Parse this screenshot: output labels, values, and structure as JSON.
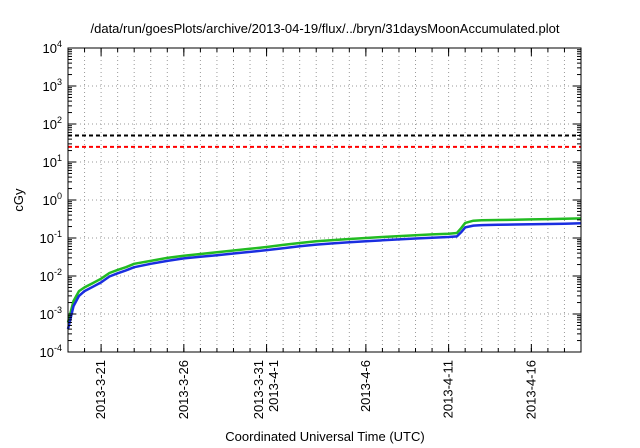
{
  "chart_data": {
    "type": "line",
    "title": "/data/run/goesPlots/archive/2013-04-19/flux/../bryn/31daysMoonAccumulated.plot",
    "xlabel": "Coordinated Universal Time (UTC)",
    "ylabel": "cGy",
    "yscale": "log",
    "ylim": [
      0.0001,
      10000
    ],
    "xlim": [
      "2013-03-19",
      "2013-04-19"
    ],
    "grid": true,
    "x_ticks": [
      {
        "date": "2013-03-21",
        "lines": [
          "2013-3-21"
        ]
      },
      {
        "date": "2013-03-26",
        "lines": [
          "2013-3-26"
        ]
      },
      {
        "date": "2013-03-31",
        "lines": [
          "2013-3-31",
          "2013-4-1"
        ]
      },
      {
        "date": "2013-04-06",
        "lines": [
          "2013-4-6"
        ]
      },
      {
        "date": "2013-04-11",
        "lines": [
          "2013-4-11"
        ]
      },
      {
        "date": "2013-04-16",
        "lines": [
          "2013-4-16"
        ]
      }
    ],
    "y_ticks": [
      {
        "exp": -4,
        "base": "10",
        "sup": "-4"
      },
      {
        "exp": -3,
        "base": "10",
        "sup": "-3"
      },
      {
        "exp": -2,
        "base": "10",
        "sup": "-2"
      },
      {
        "exp": -1,
        "base": "10",
        "sup": "-1"
      },
      {
        "exp": 0,
        "base": "10",
        "sup": "0"
      },
      {
        "exp": 1,
        "base": "10",
        "sup": "1"
      },
      {
        "exp": 2,
        "base": "10",
        "sup": "2"
      },
      {
        "exp": 3,
        "base": "10",
        "sup": "3"
      },
      {
        "exp": 4,
        "base": "10",
        "sup": "4"
      }
    ],
    "thresholds": [
      {
        "value": 50,
        "color": "#000000"
      },
      {
        "value": 25,
        "color": "#ff0000"
      }
    ],
    "series": [
      {
        "color": "#22bb22",
        "points": [
          [
            "2013-03-19",
            0.0006
          ],
          [
            "2013-03-19T08",
            0.0022
          ],
          [
            "2013-03-19T16",
            0.004
          ],
          [
            "2013-03-20",
            0.005
          ],
          [
            "2013-03-20T12",
            0.0065
          ],
          [
            "2013-03-21",
            0.0085
          ],
          [
            "2013-03-21T12",
            0.012
          ],
          [
            "2013-03-22",
            0.0145
          ],
          [
            "2013-03-22T12",
            0.017
          ],
          [
            "2013-03-23",
            0.021
          ],
          [
            "2013-03-24",
            0.025
          ],
          [
            "2013-03-25",
            0.03
          ],
          [
            "2013-03-26",
            0.034
          ],
          [
            "2013-03-27",
            0.038
          ],
          [
            "2013-03-28",
            0.042
          ],
          [
            "2013-03-29",
            0.047
          ],
          [
            "2013-03-30",
            0.052
          ],
          [
            "2013-03-31",
            0.058
          ],
          [
            "2013-04-01",
            0.066
          ],
          [
            "2013-04-02",
            0.074
          ],
          [
            "2013-04-03",
            0.082
          ],
          [
            "2013-04-04",
            0.088
          ],
          [
            "2013-04-05",
            0.094
          ],
          [
            "2013-04-06",
            0.1
          ],
          [
            "2013-04-07",
            0.106
          ],
          [
            "2013-04-08",
            0.112
          ],
          [
            "2013-04-09",
            0.118
          ],
          [
            "2013-04-10",
            0.124
          ],
          [
            "2013-04-11",
            0.13
          ],
          [
            "2013-04-11T12",
            0.135
          ],
          [
            "2013-04-11T18",
            0.18
          ],
          [
            "2013-04-12",
            0.25
          ],
          [
            "2013-04-12T12",
            0.285
          ],
          [
            "2013-04-13",
            0.292
          ],
          [
            "2013-04-14",
            0.297
          ],
          [
            "2013-04-15",
            0.302
          ],
          [
            "2013-04-16",
            0.308
          ],
          [
            "2013-04-17",
            0.314
          ],
          [
            "2013-04-18",
            0.32
          ],
          [
            "2013-04-19",
            0.328
          ]
        ]
      },
      {
        "color": "#1a2ee0",
        "points": [
          [
            "2013-03-19",
            0.0004
          ],
          [
            "2013-03-19T08",
            0.0016
          ],
          [
            "2013-03-19T16",
            0.003
          ],
          [
            "2013-03-20",
            0.004
          ],
          [
            "2013-03-20T12",
            0.0052
          ],
          [
            "2013-03-21",
            0.0068
          ],
          [
            "2013-03-21T12",
            0.0097
          ],
          [
            "2013-03-22",
            0.0118
          ],
          [
            "2013-03-22T12",
            0.014
          ],
          [
            "2013-03-23",
            0.017
          ],
          [
            "2013-03-24",
            0.021
          ],
          [
            "2013-03-25",
            0.025
          ],
          [
            "2013-03-26",
            0.029
          ],
          [
            "2013-03-27",
            0.032
          ],
          [
            "2013-03-28",
            0.035
          ],
          [
            "2013-03-29",
            0.039
          ],
          [
            "2013-03-30",
            0.043
          ],
          [
            "2013-03-31",
            0.048
          ],
          [
            "2013-04-01",
            0.054
          ],
          [
            "2013-04-02",
            0.061
          ],
          [
            "2013-04-03",
            0.067
          ],
          [
            "2013-04-04",
            0.072
          ],
          [
            "2013-04-05",
            0.077
          ],
          [
            "2013-04-06",
            0.082
          ],
          [
            "2013-04-07",
            0.087
          ],
          [
            "2013-04-08",
            0.092
          ],
          [
            "2013-04-09",
            0.097
          ],
          [
            "2013-04-10",
            0.102
          ],
          [
            "2013-04-11",
            0.106
          ],
          [
            "2013-04-11T12",
            0.11
          ],
          [
            "2013-04-11T18",
            0.14
          ],
          [
            "2013-04-12",
            0.19
          ],
          [
            "2013-04-12T12",
            0.212
          ],
          [
            "2013-04-13",
            0.218
          ],
          [
            "2013-04-14",
            0.222
          ],
          [
            "2013-04-15",
            0.226
          ],
          [
            "2013-04-16",
            0.23
          ],
          [
            "2013-04-17",
            0.234
          ],
          [
            "2013-04-18",
            0.238
          ],
          [
            "2013-04-19",
            0.243
          ]
        ]
      }
    ]
  }
}
